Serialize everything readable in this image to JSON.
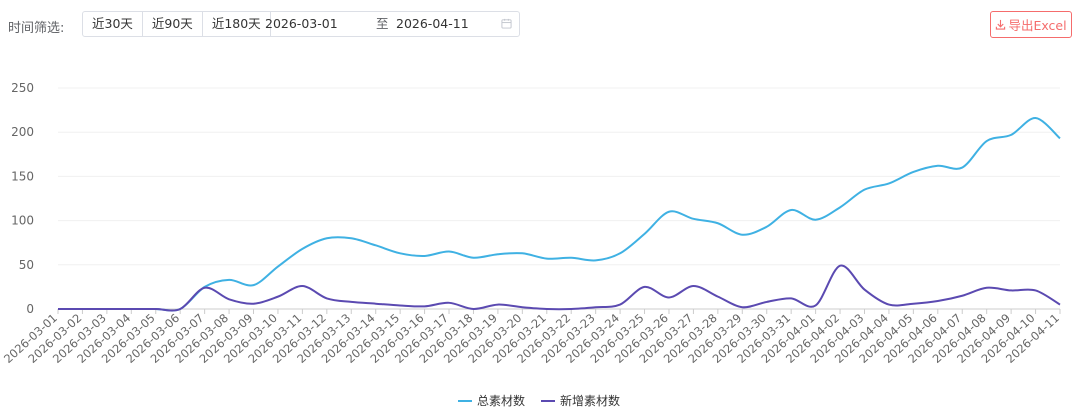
{
  "filter": {
    "label": "时间筛选:",
    "ranges": [
      "近30天",
      "近90天",
      "近180天"
    ],
    "start_date": "2026-03-01",
    "separator": "至",
    "end_date": "2026-04-11"
  },
  "export": {
    "label": "导出Excel",
    "color": "#f56c6c"
  },
  "chart_data": {
    "type": "line",
    "x": [
      "2026-03-01",
      "2026-03-02",
      "2026-03-03",
      "2026-03-04",
      "2026-03-05",
      "2026-03-06",
      "2026-03-07",
      "2026-03-08",
      "2026-03-09",
      "2026-03-10",
      "2026-03-11",
      "2026-03-12",
      "2026-03-13",
      "2026-03-14",
      "2026-03-15",
      "2026-03-16",
      "2026-03-17",
      "2026-03-18",
      "2026-03-19",
      "2026-03-20",
      "2026-03-21",
      "2026-03-22",
      "2026-03-23",
      "2026-03-24",
      "2026-03-25",
      "2026-03-26",
      "2026-03-27",
      "2026-03-28",
      "2026-03-29",
      "2026-03-30",
      "2026-03-31",
      "2026-04-01",
      "2026-04-02",
      "2026-04-03",
      "2026-04-04",
      "2026-04-05",
      "2026-04-06",
      "2026-04-07",
      "2026-04-08",
      "2026-04-09",
      "2026-04-10",
      "2026-04-11"
    ],
    "series": [
      {
        "name": "总素材数",
        "color": "#3fb1e3",
        "values": [
          0,
          0,
          0,
          0,
          0,
          0,
          25,
          33,
          27,
          48,
          68,
          80,
          80,
          72,
          63,
          60,
          65,
          58,
          62,
          63,
          57,
          58,
          55,
          63,
          85,
          110,
          102,
          97,
          84,
          93,
          112,
          101,
          115,
          135,
          142,
          155,
          162,
          160,
          190,
          197,
          216,
          193
        ]
      },
      {
        "name": "新增素材数",
        "color": "#5b4ab1",
        "values": [
          0,
          0,
          0,
          0,
          0,
          0,
          24,
          11,
          6,
          14,
          26,
          12,
          8,
          6,
          4,
          3,
          7,
          0,
          5,
          2,
          0,
          0,
          2,
          5,
          25,
          13,
          26,
          14,
          2,
          8,
          12,
          4,
          49,
          22,
          5,
          6,
          9,
          15,
          24,
          21,
          21,
          5
        ]
      }
    ],
    "ylim": [
      0,
      250
    ],
    "yticks": [
      0,
      50,
      100,
      150,
      200,
      250
    ],
    "grid": true,
    "legend": "bottom-center"
  }
}
